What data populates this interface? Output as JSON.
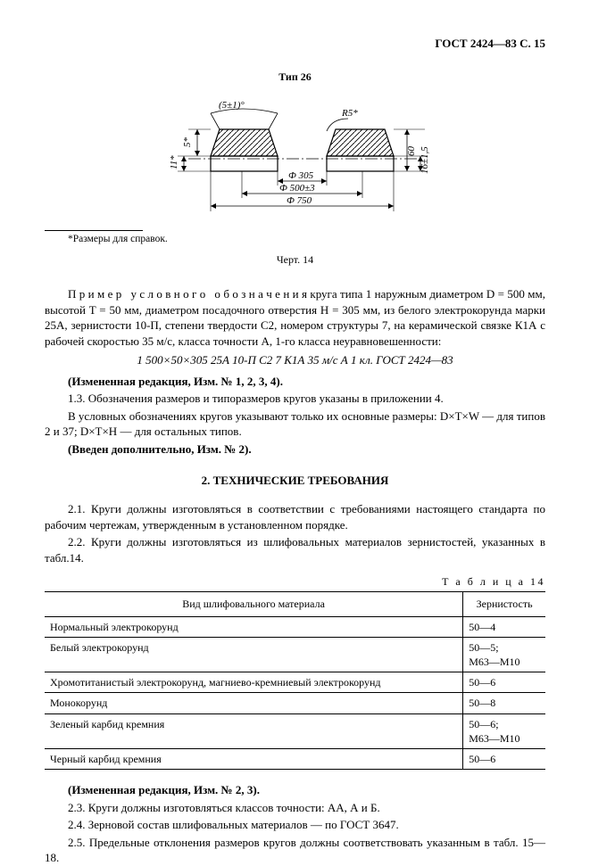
{
  "header": {
    "doc_ref": "ГОСТ 2424—83 С. 15"
  },
  "figure": {
    "title": "Тип 26",
    "footnote": "*Размеры для справок.",
    "caption": "Черт. 14",
    "labels": {
      "angle_top": "(5±1)°",
      "radius": "R5*",
      "left_dim_1": "5*",
      "left_dim_2": "11*",
      "right_dim_1": "60",
      "right_dim_2": "16±1,5",
      "diam_inner": "Ф 305",
      "diam_mid": "Ф 500±3",
      "diam_outer": "Ф 750"
    }
  },
  "example": {
    "lead": "П р и м е р   у с л о в н о г о   о б о з н а ч е н и я",
    "body": "круга типа 1 наружным диаметром D = 500 мм, высотой T = 50 мм, диаметром посадочного отверстия H = 305 мм, из белого электрокорунда марки 25А, зернистости 10-П, степени твердости С2, номером структуры 7, на керамической связке К1А с рабочей скоростью 35 м/с, класса точности А, 1-го класса неуравновешенности:",
    "designation": "1 500×50×305 25А 10-П С2 7 К1А 35 м/с А 1 кл. ГОСТ 2424—83"
  },
  "paras": {
    "p_rev1": "(Измененная редакция, Изм. № 1, 2, 3, 4).",
    "p_13": "1.3. Обозначения размеров и типоразмеров кругов указаны в приложении 4.",
    "p_cond": "В условных обозначениях кругов указывают только их основные размеры: D×T×W — для типов 2 и 37;  D×T×H — для остальных типов.",
    "p_add": "(Введен дополнительно, Изм. № 2).",
    "section_title": "2.  ТЕХНИЧЕСКИЕ ТРЕБОВАНИЯ",
    "p_21": "2.1. Круги должны изготовляться в соответствии с требованиями настоящего стандарта по рабочим чертежам, утвержденным в установленном порядке.",
    "p_22": "2.2. Круги должны изготовляться из шлифовальных материалов зернистостей, указанных в табл.14.",
    "table_label": "Т а б л и ц а  14",
    "p_rev2": "(Измененная редакция, Изм. № 2, 3).",
    "p_23": "2.3. Круги должны изготовляться классов точности: АА, А и Б.",
    "p_24": "2.4. Зерновой состав шлифовальных материалов — по ГОСТ 3647.",
    "p_25": "2.5. Предельные отклонения размеров кругов должны соответствовать указанным в табл. 15—18."
  },
  "table14": {
    "headers": [
      "Вид шлифовального материала",
      "Зернистость"
    ],
    "rows": [
      [
        "Нормальный электрокорунд",
        "50—4"
      ],
      [
        "Белый электрокорунд",
        "50—5;\nМ63—М10"
      ],
      [
        "Хромотитанистый электрокорунд, магниево-кремниевый электрокорунд",
        "50—6"
      ],
      [
        "Монокорунд",
        "50—8"
      ],
      [
        "Зеленый карбид кремния",
        "50—6;\nМ63—М10"
      ],
      [
        "Черный карбид кремния",
        "50—6"
      ]
    ]
  }
}
